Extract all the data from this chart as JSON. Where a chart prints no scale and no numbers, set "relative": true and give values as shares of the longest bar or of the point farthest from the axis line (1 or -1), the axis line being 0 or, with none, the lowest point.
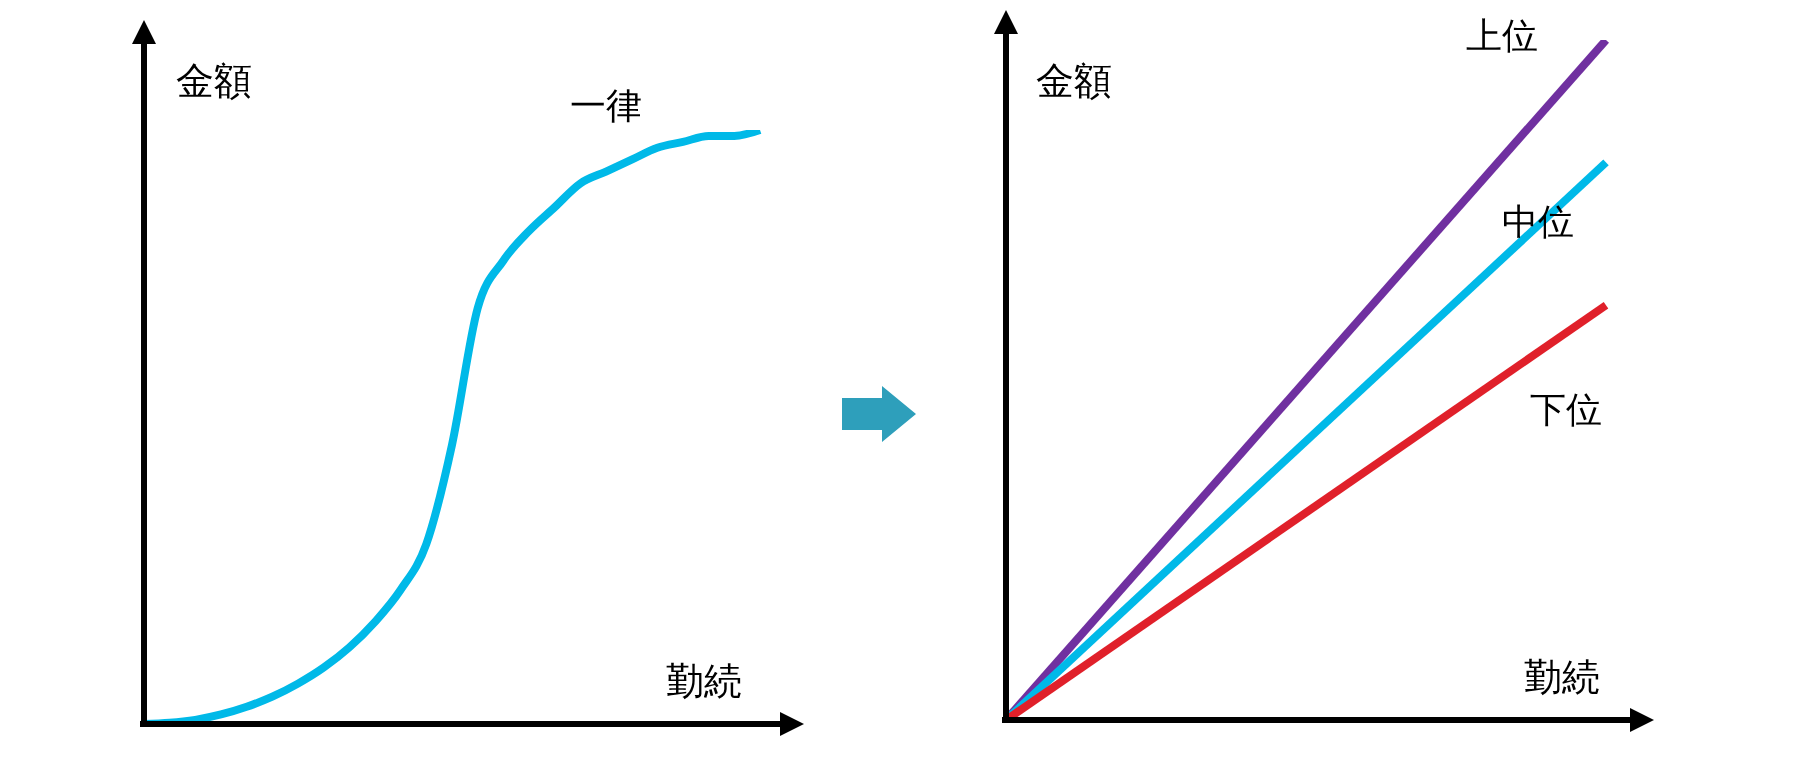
{
  "chart_data": [
    {
      "type": "line",
      "relative": true,
      "xlabel": "勤続",
      "ylabel": "金額",
      "categories": [
        null,
        null,
        null,
        null,
        null,
        null,
        null,
        null,
        null,
        null,
        null,
        null,
        null,
        null,
        null,
        null,
        null,
        null,
        null,
        null,
        null,
        null,
        null,
        null,
        null
      ],
      "series": [
        {
          "name": "一律",
          "color": "#00b9e8",
          "values": [
            0,
            0.002,
            0.007,
            0.016,
            0.029,
            0.046,
            0.068,
            0.095,
            0.129,
            0.172,
            0.226,
            0.303,
            0.47,
            0.7,
            0.78,
            0.83,
            0.87,
            0.91,
            0.93,
            0.95,
            0.97,
            0.98,
            0.99,
            0.99,
            1
          ]
        }
      ]
    },
    {
      "type": "line",
      "relative": true,
      "xlabel": "勤続",
      "ylabel": "金額",
      "categories": [
        null,
        null
      ],
      "series": [
        {
          "name": "上位",
          "color": "#7030a0",
          "values": [
            0,
            1
          ]
        },
        {
          "name": "中位",
          "color": "#00b9e8",
          "values": [
            0,
            0.82
          ]
        },
        {
          "name": "下位",
          "color": "#e0202a",
          "values": [
            0,
            0.61
          ]
        }
      ]
    }
  ]
}
